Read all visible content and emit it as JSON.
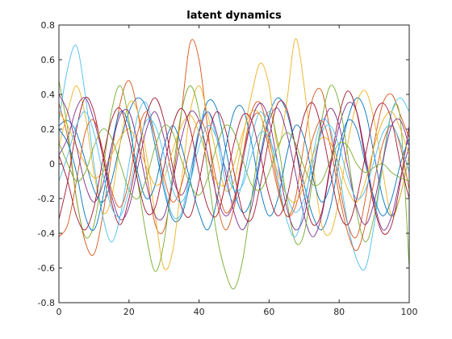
{
  "chart_data": {
    "type": "line",
    "title": "latent dynamics",
    "xlabel": "",
    "ylabel": "",
    "xlim": [
      0,
      100
    ],
    "ylim": [
      -0.8,
      0.8
    ],
    "grid": false,
    "legend": "none",
    "x_ticks": [
      "0",
      "20",
      "40",
      "60",
      "80",
      "100"
    ],
    "y_ticks": [
      "-0.8",
      "-0.6",
      "-0.4",
      "-0.2",
      "0",
      "0.2",
      "0.4",
      "0.6",
      "0.8"
    ],
    "x": [
      0,
      2.5,
      5,
      7.5,
      10,
      12.5,
      15,
      17.5,
      20,
      22.5,
      25,
      27.5,
      30,
      32.5,
      35,
      37.5,
      40,
      42.5,
      45,
      47.5,
      50,
      52.5,
      55,
      57.5,
      60,
      62.5,
      65,
      67.5,
      70,
      72.5,
      75,
      77.5,
      80,
      82.5,
      85,
      87.5,
      90,
      92.5,
      95,
      97.5,
      100
    ],
    "series": [
      {
        "color": "#0072BD",
        "values": [
          0.22,
          0.25,
          0.18,
          0.02,
          -0.15,
          -0.22,
          -0.1,
          0.12,
          0.3,
          0.38,
          0.32,
          0.1,
          -0.15,
          -0.32,
          -0.3,
          -0.1,
          0.18,
          0.36,
          0.32,
          0.1,
          -0.15,
          -0.28,
          -0.2,
          0.05,
          0.28,
          0.38,
          0.3,
          0.1,
          -0.12,
          -0.3,
          -0.38,
          -0.25,
          0.02,
          0.26,
          0.38,
          0.3,
          0.05,
          -0.2,
          -0.3,
          -0.18,
          0.05
        ]
      },
      {
        "color": "#D95319",
        "values": [
          0.35,
          0.15,
          -0.2,
          -0.45,
          -0.52,
          -0.3,
          0.05,
          0.35,
          0.48,
          0.3,
          -0.05,
          -0.35,
          -0.38,
          -0.1,
          0.3,
          0.7,
          0.6,
          0.2,
          -0.2,
          -0.38,
          -0.25,
          0.05,
          0.3,
          0.35,
          0.15,
          -0.12,
          -0.3,
          -0.2,
          0.12,
          0.38,
          0.42,
          0.18,
          -0.12,
          -0.35,
          -0.42,
          -0.2,
          0.12,
          0.35,
          0.4,
          0.28,
          0.15
        ]
      },
      {
        "color": "#EDB120",
        "values": [
          0.1,
          0.3,
          0.45,
          0.28,
          -0.05,
          -0.28,
          -0.2,
          0.12,
          0.35,
          0.3,
          0.05,
          -0.3,
          -0.6,
          -0.5,
          -0.1,
          0.3,
          0.45,
          0.28,
          0.05,
          -0.15,
          -0.1,
          0.15,
          0.4,
          0.58,
          0.45,
          0.1,
          0.35,
          0.72,
          0.45,
          0.0,
          -0.35,
          -0.4,
          -0.2,
          0.12,
          0.35,
          0.42,
          0.25,
          -0.05,
          -0.3,
          -0.18,
          0.05
        ]
      },
      {
        "color": "#7E2F8E",
        "values": [
          0.05,
          0.15,
          0.32,
          0.38,
          0.25,
          0.05,
          -0.18,
          -0.32,
          -0.25,
          -0.02,
          0.2,
          0.3,
          0.15,
          -0.08,
          -0.18,
          -0.05,
          0.18,
          0.3,
          0.18,
          -0.05,
          -0.28,
          -0.38,
          -0.25,
          0.02,
          0.25,
          0.32,
          0.18,
          -0.05,
          -0.3,
          -0.42,
          -0.3,
          -0.02,
          0.22,
          0.35,
          0.3,
          0.05,
          -0.22,
          -0.38,
          -0.3,
          -0.08,
          0.1
        ]
      },
      {
        "color": "#77AC30",
        "values": [
          0.48,
          0.2,
          -0.2,
          -0.42,
          -0.35,
          -0.05,
          0.3,
          0.45,
          0.25,
          -0.1,
          -0.42,
          -0.62,
          -0.45,
          -0.05,
          0.3,
          0.45,
          0.3,
          -0.05,
          -0.4,
          -0.62,
          -0.72,
          -0.55,
          -0.2,
          0.15,
          0.3,
          0.12,
          -0.2,
          -0.45,
          -0.4,
          -0.08,
          0.25,
          0.45,
          0.35,
          0.05,
          -0.28,
          -0.45,
          -0.3,
          0.02,
          0.3,
          0.25,
          -0.6
        ]
      },
      {
        "color": "#4DBEEE",
        "values": [
          0.25,
          0.55,
          0.68,
          0.4,
          0.0,
          -0.3,
          -0.45,
          -0.3,
          0.0,
          0.28,
          0.35,
          0.15,
          -0.12,
          -0.3,
          -0.28,
          -0.05,
          0.2,
          0.3,
          0.15,
          -0.1,
          -0.22,
          -0.1,
          0.15,
          0.3,
          0.18,
          -0.08,
          -0.32,
          -0.42,
          -0.25,
          0.05,
          0.25,
          0.2,
          -0.05,
          -0.35,
          -0.55,
          -0.6,
          -0.35,
          0.0,
          0.3,
          0.38,
          0.3
        ]
      },
      {
        "color": "#A2142F",
        "values": [
          -0.32,
          -0.1,
          0.2,
          0.38,
          0.3,
          0.05,
          -0.22,
          -0.35,
          -0.2,
          0.05,
          0.28,
          0.38,
          0.25,
          -0.02,
          -0.25,
          -0.3,
          -0.1,
          0.15,
          0.3,
          0.2,
          -0.05,
          -0.28,
          -0.32,
          -0.12,
          0.15,
          0.35,
          0.32,
          0.1,
          -0.18,
          -0.35,
          -0.28,
          0.0,
          0.28,
          0.42,
          0.3,
          0.02,
          -0.25,
          -0.4,
          -0.35,
          -0.1,
          0.22
        ]
      },
      {
        "color": "#0072BD",
        "values": [
          0.2,
          0.12,
          -0.05,
          -0.3,
          -0.38,
          -0.2,
          0.1,
          0.3,
          0.22,
          -0.05,
          -0.2,
          -0.12,
          0.1,
          0.22,
          0.1,
          -0.1,
          -0.28,
          -0.38,
          -0.22,
          0.08,
          0.3,
          0.32,
          0.12,
          -0.15,
          -0.3,
          -0.2,
          0.05,
          0.22,
          0.15,
          -0.08,
          -0.22,
          -0.12,
          0.1,
          0.25,
          0.2,
          0.0,
          -0.2,
          -0.3,
          -0.2,
          0.0,
          0.15
        ]
      },
      {
        "color": "#D95319",
        "values": [
          -0.42,
          -0.35,
          -0.1,
          0.18,
          0.25,
          0.08,
          -0.15,
          -0.25,
          -0.1,
          0.18,
          0.3,
          0.15,
          -0.08,
          -0.22,
          -0.12,
          0.1,
          0.25,
          0.15,
          -0.1,
          -0.28,
          -0.2,
          0.05,
          0.25,
          0.28,
          0.08,
          -0.15,
          -0.3,
          -0.25,
          -0.05,
          0.15,
          0.25,
          0.1,
          -0.18,
          -0.4,
          -0.5,
          -0.35,
          -0.1,
          0.12,
          0.22,
          0.1,
          -0.15
        ]
      },
      {
        "color": "#EDB120",
        "values": [
          0.3,
          0.22,
          0.1,
          0.0,
          -0.08,
          -0.05,
          0.05,
          0.15,
          0.2,
          0.12,
          -0.02,
          -0.12,
          -0.08,
          0.08,
          0.22,
          0.28,
          0.18,
          0.02,
          -0.1,
          -0.12,
          0.0,
          0.18,
          0.3,
          0.28,
          0.12,
          -0.05,
          -0.18,
          -0.22,
          -0.12,
          0.05,
          0.15,
          0.12,
          0.0,
          -0.15,
          -0.22,
          -0.1,
          0.1,
          0.25,
          0.3,
          0.2,
          0.05
        ]
      },
      {
        "color": "#7E2F8E",
        "values": [
          0.4,
          0.3,
          0.1,
          -0.12,
          -0.22,
          -0.12,
          0.1,
          0.28,
          0.3,
          0.12,
          -0.12,
          -0.3,
          -0.3,
          -0.1,
          0.15,
          0.3,
          0.25,
          0.05,
          -0.18,
          -0.3,
          -0.22,
          0.02,
          0.25,
          0.35,
          0.25,
          0.0,
          -0.25,
          -0.38,
          -0.3,
          -0.05,
          0.2,
          0.32,
          0.22,
          -0.02,
          -0.25,
          -0.35,
          -0.22,
          0.02,
          0.22,
          0.25,
          0.1
        ]
      },
      {
        "color": "#77AC30",
        "values": [
          0.12,
          0.0,
          -0.1,
          -0.05,
          0.1,
          0.2,
          0.15,
          0.0,
          -0.15,
          -0.2,
          -0.08,
          0.1,
          0.22,
          0.18,
          0.02,
          -0.12,
          -0.18,
          -0.08,
          0.1,
          0.22,
          0.18,
          0.02,
          -0.12,
          -0.15,
          -0.05,
          0.1,
          0.18,
          0.12,
          -0.02,
          -0.12,
          -0.1,
          0.02,
          0.12,
          0.1,
          0.0,
          -0.05,
          -0.02,
          0.0,
          -0.05,
          -0.08,
          -0.1
        ]
      },
      {
        "color": "#4DBEEE",
        "values": [
          -0.1,
          0.05,
          0.22,
          0.3,
          0.18,
          -0.05,
          -0.25,
          -0.3,
          -0.15,
          0.08,
          0.25,
          0.22,
          0.05,
          -0.15,
          -0.22,
          -0.1,
          0.1,
          0.22,
          0.15,
          -0.02,
          -0.15,
          -0.12,
          0.05,
          0.18,
          0.15,
          0.0,
          -0.18,
          -0.28,
          -0.2,
          0.0,
          0.18,
          0.22,
          0.1,
          -0.08,
          -0.2,
          -0.15,
          0.02,
          0.18,
          0.22,
          0.12,
          -0.05
        ]
      },
      {
        "color": "#A2142F",
        "values": [
          0.05,
          -0.1,
          -0.3,
          -0.38,
          -0.25,
          0.02,
          0.25,
          0.32,
          0.15,
          -0.1,
          -0.28,
          -0.25,
          -0.02,
          0.22,
          0.32,
          0.2,
          -0.05,
          -0.25,
          -0.3,
          -0.12,
          0.12,
          0.28,
          0.25,
          0.05,
          -0.18,
          -0.3,
          -0.2,
          0.05,
          0.28,
          0.35,
          0.2,
          -0.05,
          -0.28,
          -0.35,
          -0.2,
          0.05,
          0.28,
          0.35,
          0.25,
          0.0,
          -0.2
        ]
      }
    ]
  }
}
